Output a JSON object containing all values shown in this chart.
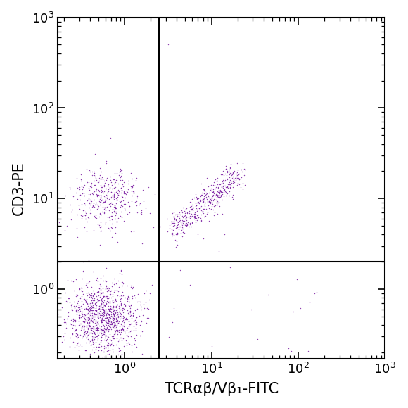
{
  "xlabel": "TCRαβ/Vβ₁-FITC",
  "ylabel": "CD3-PE",
  "dot_color": "#7B1FA2",
  "dot_alpha": 0.85,
  "dot_size": 1.0,
  "xlim": [
    0.17,
    1000
  ],
  "ylim": [
    0.17,
    1000
  ],
  "gate_x": 2.5,
  "gate_y": 2.0,
  "background_color": "#ffffff",
  "seed": 42,
  "xlabel_fontsize": 15,
  "ylabel_fontsize": 15,
  "tick_labelsize": 13
}
